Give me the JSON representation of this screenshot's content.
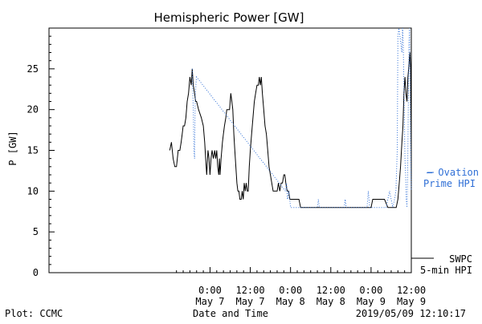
{
  "chart_data": {
    "type": "line",
    "title": "Hemispheric Power [GW]",
    "ylabel": "P [GW]",
    "xlabel": "Date and Time",
    "ylim": [
      0,
      30
    ],
    "xlim_hours_from_may7_0000": [
      -48,
      60
    ],
    "y_ticks": [
      "0",
      "5",
      "10",
      "15",
      "20",
      "25"
    ],
    "x_ticks": [
      {
        "time": "0:00",
        "date": "May 7"
      },
      {
        "time": "12:00",
        "date": "May 7"
      },
      {
        "time": "0:00",
        "date": "May 8"
      },
      {
        "time": "12:00",
        "date": "May 8"
      },
      {
        "time": "0:00",
        "date": "May 9"
      },
      {
        "time": "12:00",
        "date": "May 9"
      }
    ],
    "legend": {
      "ovation_line1": "— Ovation",
      "ovation_line2": "Prime HPI",
      "swpc_line1": "SWPC",
      "swpc_line2": "5-min HPI"
    },
    "footer": {
      "left": "Plot: CCMC",
      "center": "Date and Time",
      "right": "2019/05/09 12:10:17"
    },
    "colors": {
      "swpc": "#000000",
      "ovation": "#2f6fd6"
    },
    "series": [
      {
        "name": "SWPC 5-min HPI",
        "points": [
          [
            -12,
            15
          ],
          [
            -11.5,
            16
          ],
          [
            -11,
            14
          ],
          [
            -10.5,
            13
          ],
          [
            -10,
            13
          ],
          [
            -9.5,
            15
          ],
          [
            -9,
            15
          ],
          [
            -8.6,
            16
          ],
          [
            -8.3,
            17
          ],
          [
            -8,
            18
          ],
          [
            -7.6,
            18
          ],
          [
            -7.2,
            19
          ],
          [
            -6.8,
            21
          ],
          [
            -6.4,
            22
          ],
          [
            -6.0,
            24
          ],
          [
            -5.6,
            23
          ],
          [
            -5.3,
            25
          ],
          [
            -5.0,
            23
          ],
          [
            -4.6,
            22
          ],
          [
            -4.3,
            21
          ],
          [
            -4.0,
            21
          ],
          [
            -3.4,
            20
          ],
          [
            -2.6,
            19
          ],
          [
            -2.0,
            18
          ],
          [
            -1.6,
            16
          ],
          [
            -1.3,
            14
          ],
          [
            -1.0,
            12
          ],
          [
            -0.6,
            15
          ],
          [
            -0.3,
            14
          ],
          [
            0,
            12
          ],
          [
            0.3,
            14
          ],
          [
            0.6,
            15
          ],
          [
            1.0,
            14
          ],
          [
            1.4,
            15
          ],
          [
            1.7,
            14
          ],
          [
            2.0,
            15
          ],
          [
            2.3,
            13
          ],
          [
            2.6,
            12
          ],
          [
            2.8,
            14
          ],
          [
            3.0,
            12
          ],
          [
            3.3,
            14
          ],
          [
            3.7,
            16
          ],
          [
            4.0,
            17
          ],
          [
            4.3,
            18
          ],
          [
            4.7,
            19
          ],
          [
            5.0,
            20
          ],
          [
            5.4,
            20
          ],
          [
            5.8,
            20
          ],
          [
            6.2,
            22
          ],
          [
            6.5,
            21
          ],
          [
            6.8,
            20
          ],
          [
            7.1,
            17
          ],
          [
            7.4,
            15
          ],
          [
            7.7,
            13
          ],
          [
            8.0,
            11
          ],
          [
            8.3,
            10
          ],
          [
            8.6,
            10
          ],
          [
            8.9,
            9
          ],
          [
            9.3,
            9
          ],
          [
            9.6,
            10
          ],
          [
            9.9,
            9
          ],
          [
            10.2,
            11
          ],
          [
            10.5,
            10
          ],
          [
            10.8,
            11
          ],
          [
            11.1,
            10
          ],
          [
            11.4,
            10
          ],
          [
            11.7,
            13
          ],
          [
            12.0,
            15
          ],
          [
            12.4,
            17
          ],
          [
            12.8,
            19
          ],
          [
            13.2,
            21
          ],
          [
            13.6,
            22
          ],
          [
            14.0,
            23
          ],
          [
            14.4,
            23
          ],
          [
            14.7,
            24
          ],
          [
            15.0,
            23
          ],
          [
            15.3,
            24
          ],
          [
            15.6,
            22
          ],
          [
            16.0,
            20
          ],
          [
            16.4,
            18
          ],
          [
            16.8,
            17
          ],
          [
            17.2,
            15
          ],
          [
            17.6,
            13
          ],
          [
            18.0,
            12
          ],
          [
            18.4,
            11
          ],
          [
            18.8,
            10
          ],
          [
            19.2,
            10
          ],
          [
            19.6,
            10
          ],
          [
            20.0,
            10
          ],
          [
            20.4,
            11
          ],
          [
            20.8,
            10
          ],
          [
            21.2,
            11
          ],
          [
            21.6,
            11
          ],
          [
            22.0,
            12
          ],
          [
            22.3,
            12
          ],
          [
            22.6,
            11
          ],
          [
            23.0,
            10
          ],
          [
            23.4,
            10
          ],
          [
            23.8,
            9
          ],
          [
            24.2,
            9
          ],
          [
            24.6,
            9
          ],
          [
            25.0,
            9
          ],
          [
            25.5,
            9
          ],
          [
            26.0,
            9
          ],
          [
            26.5,
            9
          ],
          [
            27.0,
            8
          ],
          [
            30,
            8
          ],
          [
            35,
            8
          ],
          [
            40,
            8
          ],
          [
            45,
            8
          ],
          [
            48,
            8
          ],
          [
            48.5,
            9
          ],
          [
            50,
            9
          ],
          [
            51,
            9
          ],
          [
            52,
            9
          ],
          [
            53,
            8
          ],
          [
            54,
            8
          ],
          [
            55,
            8
          ],
          [
            55.5,
            8
          ],
          [
            56.0,
            9
          ],
          [
            56.4,
            11
          ],
          [
            56.8,
            13
          ],
          [
            57.2,
            16
          ],
          [
            57.5,
            18
          ],
          [
            57.8,
            22
          ],
          [
            58.1,
            24
          ],
          [
            58.4,
            22
          ],
          [
            58.7,
            21
          ],
          [
            59.0,
            24
          ],
          [
            59.2,
            25
          ],
          [
            59.4,
            26
          ],
          [
            59.6,
            27
          ],
          [
            59.8,
            25
          ],
          [
            60.0,
            15
          ]
        ]
      },
      {
        "name": "Ovation Prime HPI",
        "points": [
          [
            -5.3,
            25
          ],
          [
            -5.0,
            20
          ],
          [
            -4.8,
            15
          ],
          [
            -4.6,
            14
          ],
          [
            -4.4,
            22
          ],
          [
            -4.0,
            24
          ],
          [
            22.5,
            10
          ],
          [
            22.8,
            11
          ],
          [
            23.1,
            9
          ],
          [
            23.5,
            10
          ],
          [
            24,
            8
          ],
          [
            27,
            8
          ],
          [
            30,
            8
          ],
          [
            32,
            8
          ],
          [
            32.3,
            9
          ],
          [
            32.6,
            8
          ],
          [
            36,
            8
          ],
          [
            40,
            8
          ],
          [
            40.3,
            9
          ],
          [
            40.6,
            8
          ],
          [
            44,
            8
          ],
          [
            46.8,
            8
          ],
          [
            47.2,
            10
          ],
          [
            47.6,
            8
          ],
          [
            48,
            8
          ],
          [
            52.5,
            8
          ],
          [
            53,
            9
          ],
          [
            53.5,
            10
          ],
          [
            54,
            9
          ],
          [
            54.5,
            8
          ],
          [
            55,
            9
          ],
          [
            55.4,
            10
          ],
          [
            55.8,
            15
          ],
          [
            56.0,
            29
          ],
          [
            56.3,
            30
          ],
          [
            56.6,
            29
          ],
          [
            56.9,
            28
          ],
          [
            57.2,
            27
          ],
          [
            57.4,
            30
          ],
          [
            57.6,
            28
          ],
          [
            57.9,
            20
          ],
          [
            58.1,
            14
          ],
          [
            58.3,
            12
          ],
          [
            58.5,
            9
          ],
          [
            58.7,
            8
          ],
          [
            58.9,
            12
          ],
          [
            59.1,
            20
          ],
          [
            59.3,
            28
          ],
          [
            59.5,
            30
          ],
          [
            59.7,
            18
          ],
          [
            59.9,
            12
          ],
          [
            60.0,
            10
          ]
        ]
      }
    ]
  }
}
